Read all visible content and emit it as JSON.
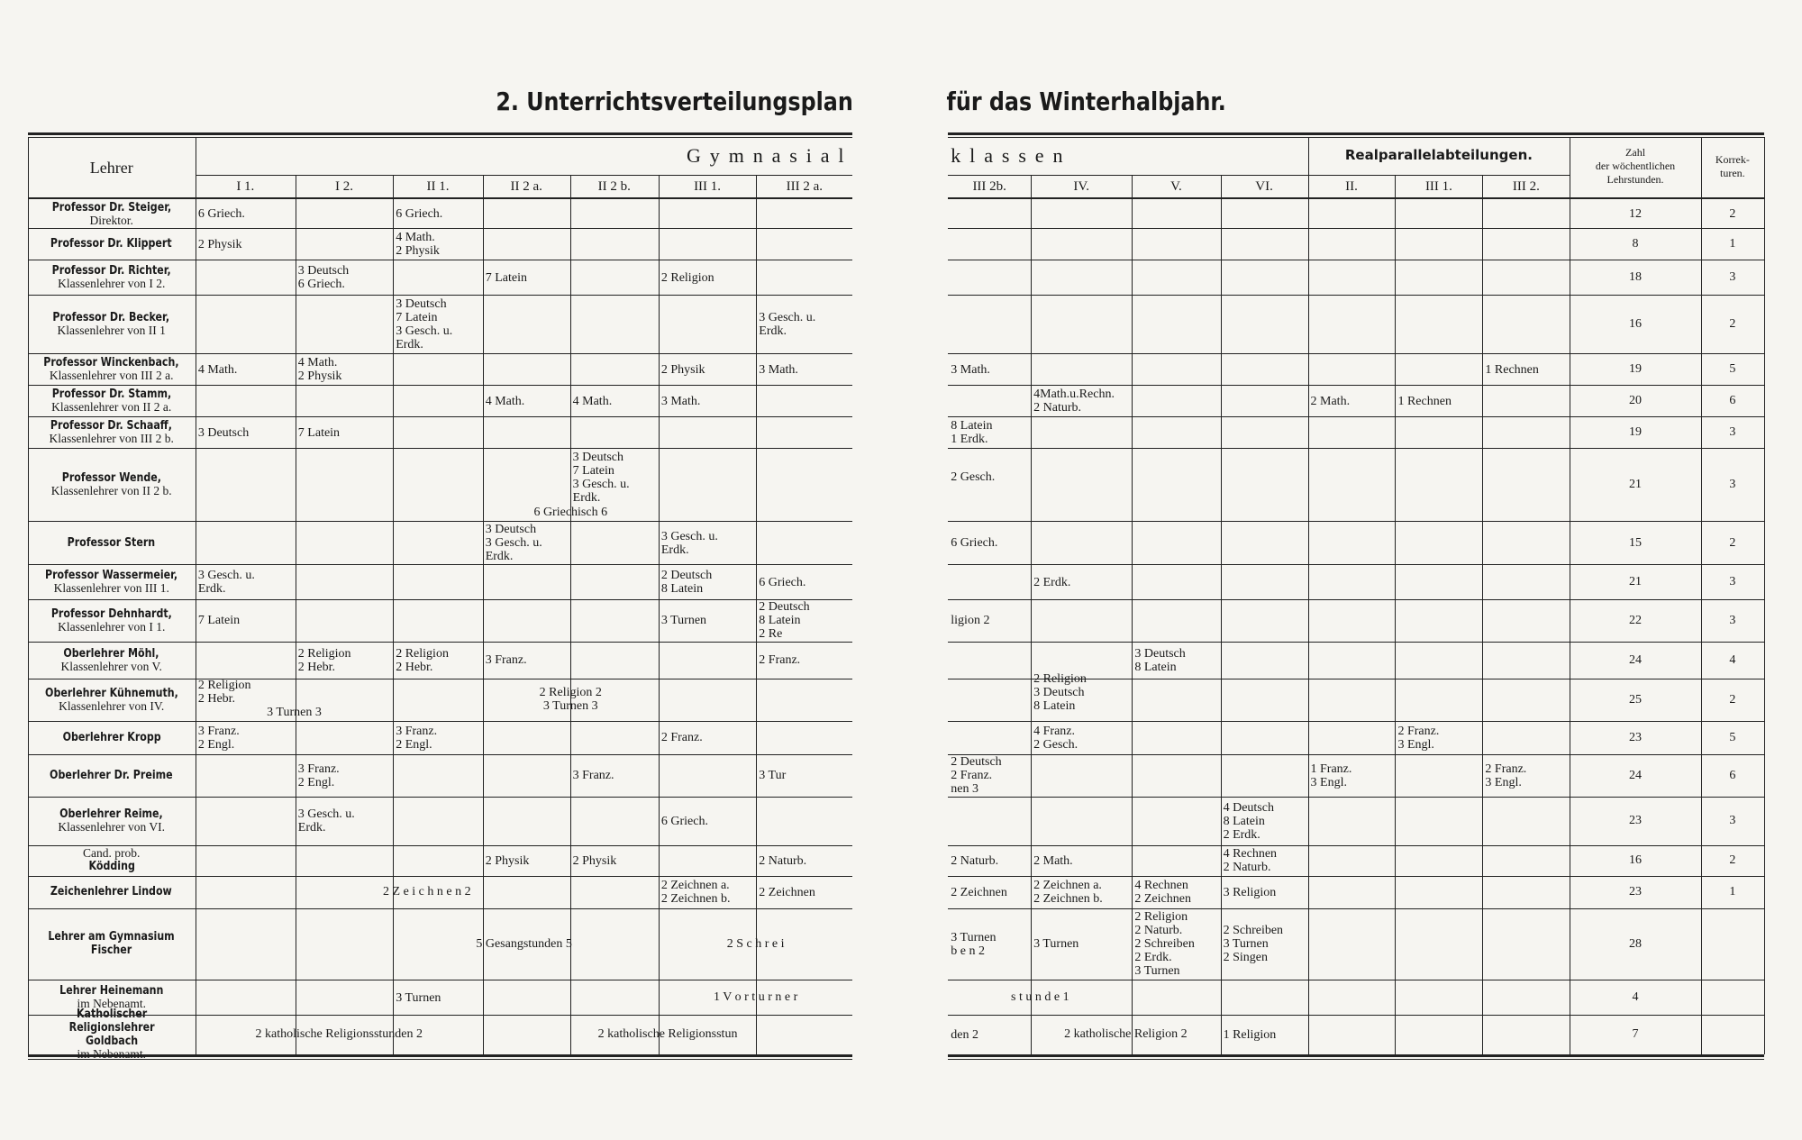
{
  "titles": {
    "left": "2. Unterrichtsverteilungsplan",
    "right": "für das Winterhalbjahr."
  },
  "header": {
    "teacher": "Lehrer",
    "gymnasial_left": "Gymnasial",
    "gymnasial_right": "klassen",
    "real": "Realparallelabteilungen.",
    "hours": "Zahl\nder wöchentlichen\nLehrstunden.",
    "corrections": "Korrek-\nturen.",
    "classes": [
      "I 1.",
      "I 2.",
      "II 1.",
      "II 2 a.",
      "II 2 b.",
      "III 1.",
      "III 2 a.",
      "III 2b.",
      "IV.",
      "V.",
      "VI.",
      "II.",
      "III 1.",
      "III 2."
    ]
  },
  "rows": [
    {
      "teacher": {
        "name": "Professor Dr. Steiger,",
        "note": "Direktor."
      },
      "cells": [
        "6 Griech.",
        null,
        "6 Griech.",
        null,
        null,
        null,
        null,
        null,
        null,
        null,
        null,
        null,
        null,
        null
      ],
      "hours": 12,
      "corrections": 2
    },
    {
      "teacher": {
        "name": "Professor Dr. Klippert"
      },
      "cells": [
        "2 Physik",
        null,
        "4 Math.\n2 Physik",
        null,
        null,
        null,
        null,
        null,
        null,
        null,
        null,
        null,
        null,
        null
      ],
      "hours": 8,
      "corrections": 1
    },
    {
      "teacher": {
        "name": "Professor Dr. Richter,",
        "note": "Klassenlehrer von I 2."
      },
      "cells": [
        null,
        "3 Deutsch\n6 Griech.",
        null,
        "7 Latein",
        null,
        "2 Religion",
        null,
        null,
        null,
        null,
        null,
        null,
        null,
        null
      ],
      "hours": 18,
      "corrections": 3
    },
    {
      "teacher": {
        "name": "Professor Dr. Becker,",
        "note": "Klassenlehrer von II 1"
      },
      "cells": [
        null,
        null,
        "3 Deutsch\n7 Latein\n3 Gesch. u.\nErdk.",
        null,
        null,
        null,
        "3 Gesch. u.\nErdk.",
        null,
        null,
        null,
        null,
        null,
        null,
        null
      ],
      "hours": 16,
      "corrections": 2
    },
    {
      "teacher": {
        "name": "Professor Winckenbach,",
        "note": "Klassenlehrer von III 2 a."
      },
      "cells": [
        "4 Math.",
        "4 Math.\n2 Physik",
        null,
        null,
        null,
        "2 Physik",
        "3 Math.",
        "3 Math.",
        null,
        null,
        null,
        null,
        null,
        "1 Rechnen"
      ],
      "hours": 19,
      "corrections": 5
    },
    {
      "teacher": {
        "name": "Professor Dr. Stamm,",
        "note": "Klassenlehrer von II 2 a."
      },
      "cells": [
        null,
        null,
        null,
        "4 Math.",
        "4 Math.",
        "3 Math.",
        null,
        null,
        "4Math.u.Rechn.\n2 Naturb.",
        null,
        null,
        "2 Math.",
        "1 Rechnen",
        null
      ],
      "hours": 20,
      "corrections": 6
    },
    {
      "teacher": {
        "name": "Professor Dr. Schaaff,",
        "note": "Klassenlehrer von III 2 b."
      },
      "cells": [
        "3 Deutsch",
        "7 Latein",
        null,
        null,
        null,
        null,
        null,
        "8 Latein\n1 Erdk.",
        null,
        null,
        null,
        null,
        null,
        null
      ],
      "hours": 19,
      "corrections": 3
    },
    {
      "teacher": {
        "name": "Professor Wende,",
        "note": "Klassenlehrer von II 2 b."
      },
      "cells": [
        null,
        null,
        null,
        null,
        "3 Deutsch\n7 Latein\n3 Gesch. u.\nErdk.",
        null,
        null,
        "2 Gesch.",
        null,
        null,
        null,
        null,
        null,
        null
      ],
      "spans": [
        {
          "from": 3,
          "to": 4,
          "text": "6 Griechisch 6"
        }
      ],
      "hours": 21,
      "corrections": 3
    },
    {
      "teacher": {
        "name": "Professor Stern"
      },
      "cells": [
        null,
        null,
        null,
        "3 Deutsch\n3 Gesch. u.\nErdk.",
        null,
        "3 Gesch. u.\nErdk.",
        null,
        "6 Griech.",
        null,
        null,
        null,
        null,
        null,
        null
      ],
      "hours": 15,
      "corrections": 2
    },
    {
      "teacher": {
        "name": "Professor Wassermeier,",
        "note": "Klassenlehrer von III 1."
      },
      "cells": [
        "3 Gesch. u.\nErdk.",
        null,
        null,
        null,
        null,
        "2 Deutsch\n8 Latein",
        "6 Griech.",
        null,
        "2 Erdk.",
        null,
        null,
        null,
        null,
        null
      ],
      "hours": 21,
      "corrections": 3
    },
    {
      "teacher": {
        "name": "Professor Dehnhardt,",
        "note": "Klassenlehrer von I 1."
      },
      "cells": [
        "7 Latein",
        null,
        null,
        null,
        null,
        "3 Turnen",
        "2 Deutsch\n8 Latein\n2 Re",
        "ligion 2",
        null,
        null,
        null,
        null,
        null,
        null
      ],
      "hours": 22,
      "corrections": 3
    },
    {
      "teacher": {
        "name": "Oberlehrer Möhl,",
        "note": "Klassenlehrer von V."
      },
      "cells": [
        null,
        "2 Religion\n2 Hebr.",
        "2 Religion\n2 Hebr.",
        "3 Franz.",
        null,
        null,
        "2 Franz.",
        null,
        null,
        "3 Deutsch\n8 Latein",
        null,
        null,
        null,
        null
      ],
      "hours": 24,
      "corrections": 4
    },
    {
      "teacher": {
        "name": "Oberlehrer Kühnemuth,",
        "note": "Klassenlehrer von IV."
      },
      "cells": [
        "2 Religion\n2 Hebr.",
        null,
        null,
        null,
        null,
        null,
        null,
        null,
        "2 Religion\n3 Deutsch\n8 Latein",
        null,
        null,
        null,
        null,
        null
      ],
      "spans": [
        {
          "from": 0,
          "to": 1,
          "text": "3 Turnen 3"
        },
        {
          "from": 3,
          "to": 4,
          "text": "2 Religion 2\n3 Turnen 3"
        }
      ],
      "hours": 25,
      "corrections": 2
    },
    {
      "teacher": {
        "name": "Oberlehrer Kropp"
      },
      "cells": [
        "3 Franz.\n2 Engl.",
        null,
        "3 Franz.\n2 Engl.",
        null,
        null,
        "2 Franz.",
        null,
        null,
        "4 Franz.\n2 Gesch.",
        null,
        null,
        null,
        "2 Franz.\n3 Engl.",
        null
      ],
      "hours": 23,
      "corrections": 5
    },
    {
      "teacher": {
        "name": "Oberlehrer Dr. Preime"
      },
      "cells": [
        null,
        "3 Franz.\n2 Engl.",
        null,
        null,
        "3 Franz.",
        null,
        "3 Tur",
        "2 Deutsch\n2 Franz.\nnen 3",
        null,
        null,
        null,
        "1 Franz.\n3 Engl.",
        null,
        "2 Franz.\n3 Engl."
      ],
      "hours": 24,
      "corrections": 6
    },
    {
      "teacher": {
        "name": "Oberlehrer Reime,",
        "note": "Klassenlehrer von VI."
      },
      "cells": [
        null,
        "3 Gesch. u.\nErdk.",
        null,
        null,
        null,
        "6 Griech.",
        null,
        null,
        null,
        null,
        "4 Deutsch\n8 Latein\n2 Erdk.",
        null,
        null,
        null
      ],
      "hours": 23,
      "corrections": 3
    },
    {
      "teacher": {
        "prefix": "Cand. prob.",
        "name": "Ködding"
      },
      "cells": [
        null,
        null,
        null,
        "2 Physik",
        "2 Physik",
        null,
        "2 Naturb.",
        "2 Naturb.",
        "2 Math.",
        null,
        "4 Rechnen\n2 Naturb.",
        null,
        null,
        null
      ],
      "hours": 16,
      "corrections": 2
    },
    {
      "teacher": {
        "name": "Zeichenlehrer Lindow"
      },
      "cells": [
        null,
        null,
        null,
        null,
        null,
        "2 Zeichnen a.\n2 Zeichnen b.",
        "2 Zeichnen",
        "2 Zeichnen",
        "2 Zeichnen a.\n2 Zeichnen b.",
        "4 Rechnen\n2 Zeichnen",
        "3 Religion",
        null,
        null,
        null
      ],
      "spans": [
        {
          "from": 0,
          "to": 4,
          "text": "2 Z e i c h n e n 2"
        }
      ],
      "hours": 23,
      "corrections": 1
    },
    {
      "teacher": {
        "name": "Lehrer am Gymnasium\nFischer"
      },
      "cells": [
        null,
        null,
        null,
        null,
        null,
        null,
        null,
        "3 Turnen\nb e n 2",
        "3 Turnen",
        "2 Religion\n2 Naturb.\n2 Schreiben\n2 Erdk.\n3 Turnen",
        "2 Schreiben\n3 Turnen\n2 Singen",
        null,
        null,
        null
      ],
      "spans": [
        {
          "from": 0,
          "to": 6,
          "text": "5 Gesangstunden 5"
        },
        {
          "from": 5,
          "to": 6,
          "text": "2 S c h r e i"
        }
      ],
      "hours": 28
    },
    {
      "teacher": {
        "name": "Lehrer Heinemann",
        "note": "im Nebenamt."
      },
      "cells": [
        null,
        null,
        "3 Turnen",
        null,
        null,
        null,
        null,
        null,
        null,
        null,
        null,
        null,
        null,
        null
      ],
      "spans": [
        {
          "from": 5,
          "to": 6,
          "text": "1 V o r t u r n e r"
        },
        {
          "from": 7,
          "to": 8,
          "text": "s t u n d e 1"
        }
      ],
      "hours": 4
    },
    {
      "teacher": {
        "name": "Katholischer Religionslehrer\nGoldbach",
        "note": "im Nebenamt."
      },
      "cells": [
        null,
        null,
        null,
        null,
        null,
        null,
        null,
        "den 2",
        null,
        null,
        "1 Religion",
        null,
        null,
        null
      ],
      "spans": [
        {
          "from": 0,
          "to": 2,
          "text": "2 katholische Religionsstunden 2"
        },
        {
          "from": 3,
          "to": 6,
          "text": "2 katholische Religionsstun"
        },
        {
          "from": 8,
          "to": 9,
          "text": "2 katholische Religion 2"
        }
      ],
      "hours": 7
    }
  ]
}
